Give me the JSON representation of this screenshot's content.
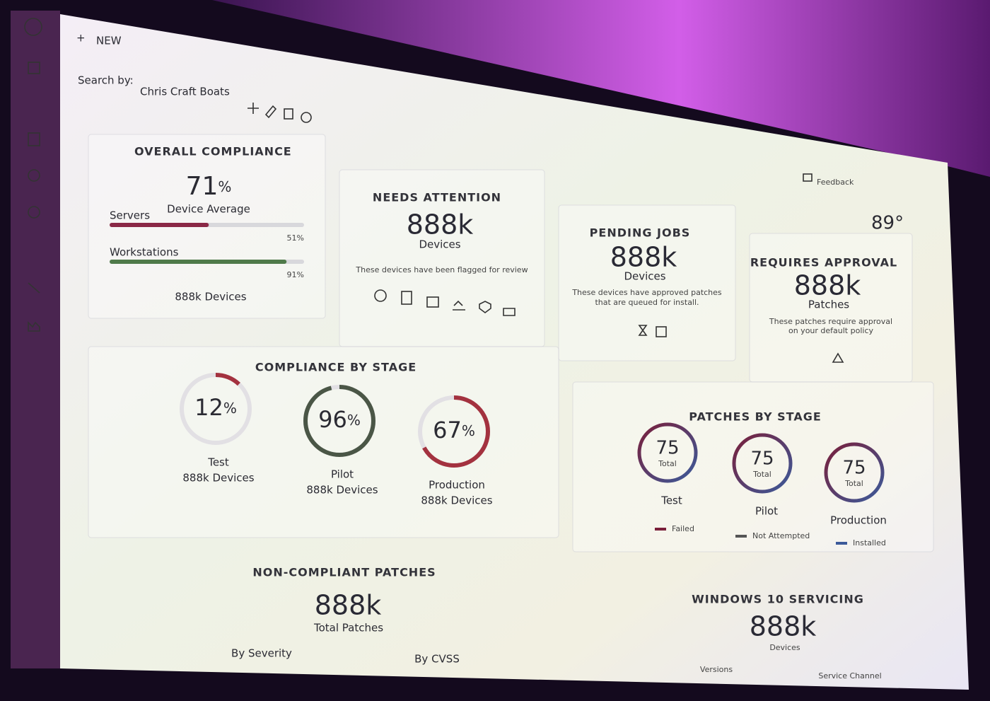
{
  "header": {
    "new_button": "NEW",
    "search_label": "Search by:",
    "search_value": "Chris Craft Boats",
    "feedback": "Feedback",
    "temperature": "89°"
  },
  "overall_compliance": {
    "title": "OVERALL COMPLIANCE",
    "value": 71,
    "unit": "%",
    "label": "Device Average",
    "bars": [
      {
        "name": "Servers",
        "value": 51,
        "value_label": "51%",
        "color": "#8a2846"
      },
      {
        "name": "Workstations",
        "value": 91,
        "value_label": "91%",
        "color": "#4f7a4a"
      }
    ],
    "footer": "888k Devices"
  },
  "needs_attention": {
    "title": "NEEDS ATTENTION",
    "value": "888k",
    "label": "Devices",
    "description": "These devices have been flagged for review"
  },
  "pending_jobs": {
    "title": "PENDING JOBS",
    "value": "888k",
    "label": "Devices",
    "description": [
      "These devices have approved patches",
      "that are queued for install."
    ]
  },
  "requires_approval": {
    "title": "REQUIRES APPROVAL",
    "value": "888k",
    "label": "Patches",
    "description": [
      "These patches require approval",
      "on your default policy"
    ]
  },
  "compliance_by_stage": {
    "title": "COMPLIANCE BY STAGE",
    "stages": [
      {
        "value": 12,
        "unit": "%",
        "name": "Test",
        "devices": "888k Devices",
        "color": "#a3323f"
      },
      {
        "value": 96,
        "unit": "%",
        "name": "Pilot",
        "devices": "888k Devices",
        "color": "#4a5646"
      },
      {
        "value": 67,
        "unit": "%",
        "name": "Production",
        "devices": "888k Devices",
        "color": "#a3323f"
      }
    ]
  },
  "patches_by_stage": {
    "title": "PATCHES BY STAGE",
    "stages": [
      {
        "total": "75",
        "total_label": "Total",
        "name": "Test"
      },
      {
        "total": "75",
        "total_label": "Total",
        "name": "Pilot"
      },
      {
        "total": "75",
        "total_label": "Total",
        "name": "Production"
      }
    ],
    "legend": [
      {
        "name": "Failed",
        "color": "#7a1f3a"
      },
      {
        "name": "Not Attempted",
        "color": "#555555"
      },
      {
        "name": "Installed",
        "color": "#3b5a9a"
      }
    ]
  },
  "non_compliant_patches": {
    "title": "NON-COMPLIANT PATCHES",
    "value": "888k",
    "label": "Total Patches",
    "sections": [
      "By Severity",
      "By CVSS"
    ]
  },
  "windows_10_servicing": {
    "title": "WINDOWS 10 SERVICING",
    "value": "888k",
    "label": "Devices",
    "sections": [
      "Versions",
      "Service Channel"
    ]
  }
}
